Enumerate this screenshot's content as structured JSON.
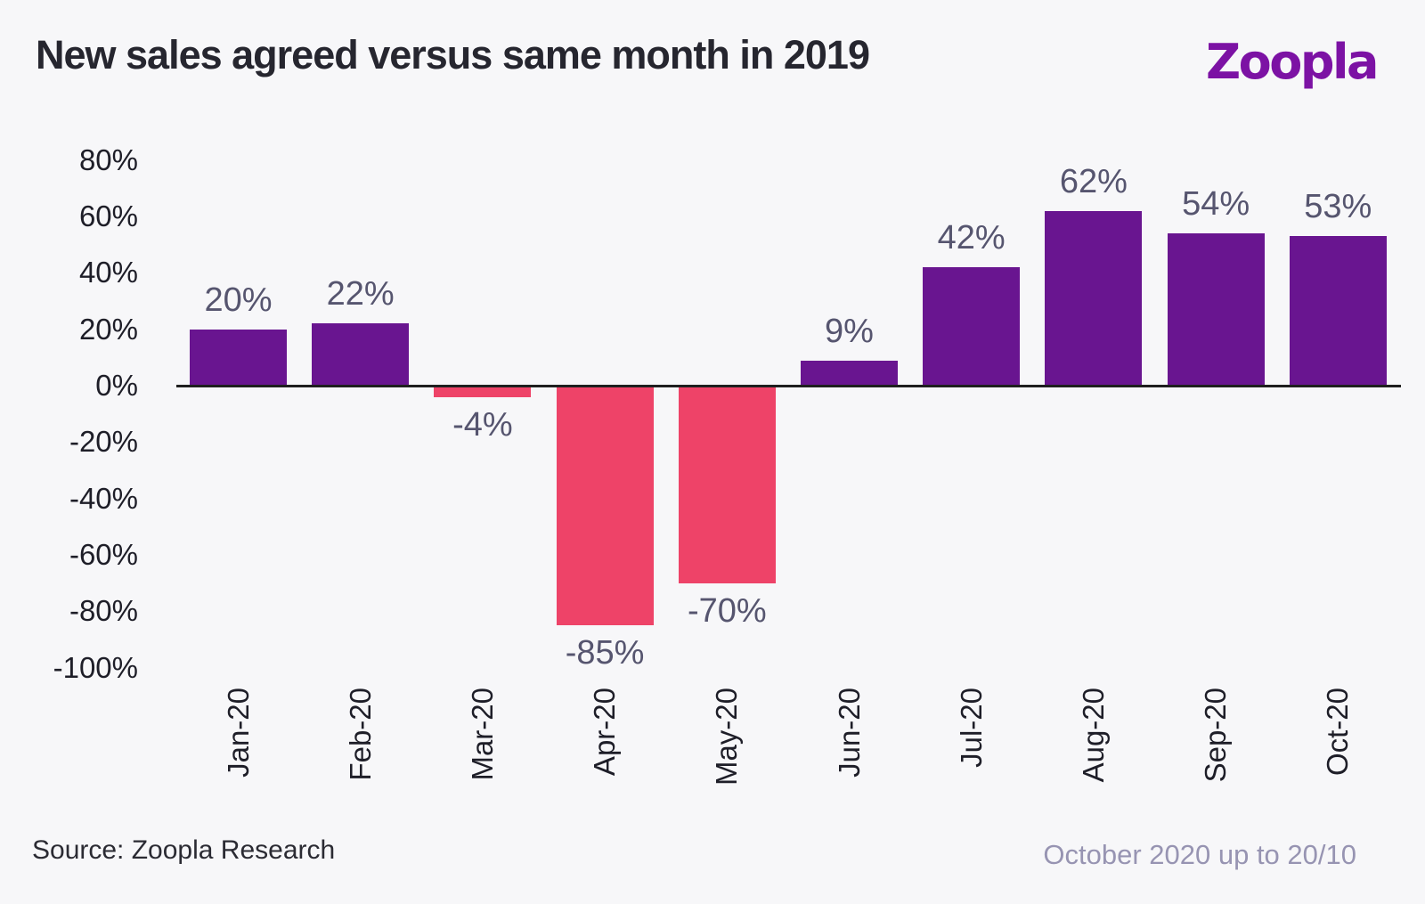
{
  "header": {
    "title": "New sales agreed versus same month in 2019",
    "logo": "Zoopla"
  },
  "footer": {
    "source": "Source: Zoopla Research",
    "period": "October 2020 up to 20/10"
  },
  "colors": {
    "background": "#f7f7f9",
    "positive_bar": "#691590",
    "negative_bar": "#ee4368",
    "logo_purple": "#7c12a4",
    "title_text": "#26262f",
    "axis_text": "#1e1e28",
    "value_label_text": "#56556f",
    "period_text": "#9794b2",
    "axis_line": "#1f1f1f"
  },
  "chart_data": {
    "type": "bar",
    "title": "New sales agreed versus same month in 2019",
    "categories": [
      "Jan-20",
      "Feb-20",
      "Mar-20",
      "Apr-20",
      "May-20",
      "Jun-20",
      "Jul-20",
      "Aug-20",
      "Sep-20",
      "Oct-20"
    ],
    "values": [
      20,
      22,
      -4,
      -85,
      -70,
      9,
      42,
      62,
      54,
      53
    ],
    "value_labels": [
      "20%",
      "22%",
      "-4%",
      "-85%",
      "-70%",
      "9%",
      "42%",
      "62%",
      "54%",
      "53%"
    ],
    "yticks": [
      80,
      60,
      40,
      20,
      0,
      -20,
      -40,
      -60,
      -80,
      -100
    ],
    "ytick_labels": [
      "80%",
      "60%",
      "40%",
      "20%",
      "0%",
      "-20%",
      "-40%",
      "-60%",
      "-80%",
      "-100%"
    ],
    "ylim": [
      -100,
      80
    ],
    "xlabel": "",
    "ylabel": "",
    "grid": false,
    "legend_position": "none",
    "positive_color": "#691590",
    "negative_color": "#ee4368"
  }
}
